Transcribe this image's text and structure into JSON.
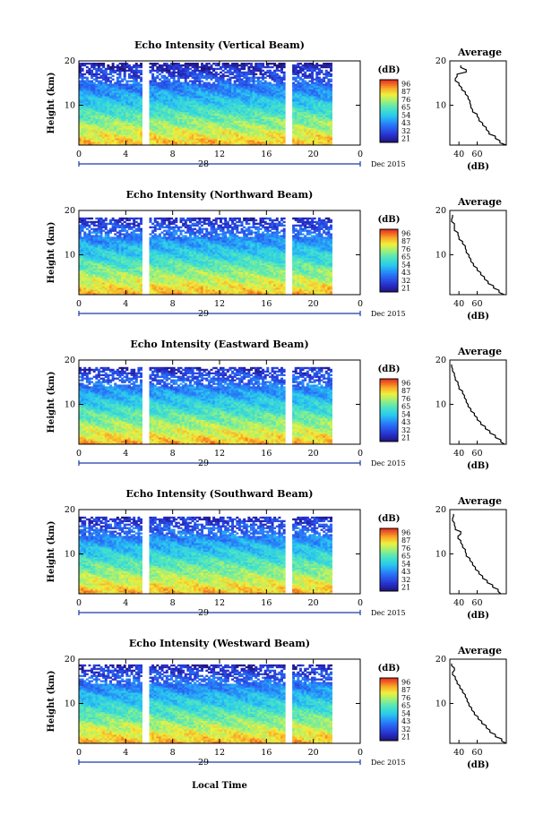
{
  "figure": {
    "date_label": "Dec 2015",
    "xlabel": "Local Time",
    "ylabel": "Height (km)",
    "average_title": "Average",
    "average_xlabel": "(dB)",
    "colorbar_unit": "(dB)",
    "colorbar_ticks": [
      "96",
      "87",
      "76",
      "65",
      "54",
      "43",
      "32",
      "21"
    ]
  },
  "chart_data": [
    {
      "type": "heatmap",
      "title": "Echo Intensity (Vertical Beam)",
      "xlabel": "",
      "ylabel": "Height (km)",
      "x_ticks": [
        "0",
        "4",
        "8",
        "12",
        "16",
        "20",
        "0"
      ],
      "y_ticks": [
        "10",
        "20"
      ],
      "day_label": "28",
      "xlim": [
        0,
        24
      ],
      "ylim": [
        1,
        20
      ],
      "gaps": [
        [
          5.4,
          5.9
        ],
        [
          17.6,
          18.1
        ],
        [
          21.6,
          22.3
        ]
      ],
      "top_km": 19.5,
      "profile_height_km": [
        1,
        2,
        3,
        4,
        5,
        6,
        7,
        8,
        9,
        10,
        11,
        12,
        13,
        14,
        15,
        16,
        17,
        18,
        19
      ],
      "profile_db": [
        92,
        85,
        80,
        73,
        70,
        66,
        62,
        60,
        55,
        53,
        52,
        50,
        47,
        43,
        40,
        36,
        38,
        48,
        42
      ],
      "profile_xticks": [
        "40",
        "60"
      ],
      "profile_xlim": [
        30,
        92
      ],
      "profile_yticks": [
        "10",
        "20"
      ]
    },
    {
      "type": "heatmap",
      "title": "Echo Intensity (Northward Beam)",
      "xlabel": "",
      "ylabel": "Height (km)",
      "x_ticks": [
        "0",
        "4",
        "8",
        "12",
        "16",
        "20",
        "0"
      ],
      "y_ticks": [
        "10",
        "20"
      ],
      "day_label": "29",
      "xlim": [
        0,
        24
      ],
      "ylim": [
        1,
        20
      ],
      "gaps": [
        [
          5.4,
          5.9
        ],
        [
          17.6,
          18.1
        ],
        [
          21.6,
          22.3
        ]
      ],
      "top_km": 18.5,
      "profile_height_km": [
        1,
        2,
        3,
        4,
        5,
        6,
        7,
        8,
        9,
        10,
        11,
        12,
        13,
        14,
        15,
        16,
        17,
        18,
        19
      ],
      "profile_db": [
        90,
        84,
        78,
        72,
        68,
        64,
        60,
        56,
        53,
        51,
        48,
        47,
        44,
        40,
        39,
        35,
        35,
        32,
        33
      ],
      "profile_xticks": [
        "40",
        "60"
      ],
      "profile_xlim": [
        30,
        92
      ],
      "profile_yticks": [
        "10",
        "20"
      ]
    },
    {
      "type": "heatmap",
      "title": "Echo Intensity (Eastward Beam)",
      "xlabel": "",
      "ylabel": "Height (km)",
      "x_ticks": [
        "0",
        "4",
        "8",
        "12",
        "16",
        "20",
        "0"
      ],
      "y_ticks": [
        "10",
        "20"
      ],
      "day_label": "29",
      "xlim": [
        0,
        24
      ],
      "ylim": [
        1,
        20
      ],
      "gaps": [
        [
          5.4,
          5.9
        ],
        [
          17.6,
          18.1
        ],
        [
          21.6,
          22.3
        ]
      ],
      "top_km": 18.5,
      "profile_height_km": [
        1,
        2,
        3,
        4,
        5,
        6,
        7,
        8,
        9,
        10,
        11,
        12,
        13,
        14,
        15,
        16,
        17,
        18,
        19
      ],
      "profile_db": [
        90,
        86,
        80,
        74,
        69,
        64,
        60,
        57,
        53,
        50,
        48,
        46,
        44,
        40,
        39,
        36,
        35,
        33,
        32
      ],
      "profile_xticks": [
        "40",
        "60"
      ],
      "profile_xlim": [
        30,
        92
      ],
      "profile_yticks": [
        "10",
        "20"
      ]
    },
    {
      "type": "heatmap",
      "title": "Echo Intensity (Southward Beam)",
      "xlabel": "",
      "ylabel": "Height (km)",
      "x_ticks": [
        "0",
        "4",
        "8",
        "12",
        "16",
        "20",
        "0"
      ],
      "y_ticks": [
        "10",
        "20"
      ],
      "day_label": "29",
      "xlim": [
        0,
        24
      ],
      "ylim": [
        1,
        20
      ],
      "gaps": [
        [
          5.4,
          5.9
        ],
        [
          17.6,
          18.1
        ],
        [
          21.6,
          22.3
        ]
      ],
      "top_km": 18.5,
      "profile_height_km": [
        1,
        2,
        3,
        4,
        5,
        6,
        7,
        8,
        9,
        10,
        11,
        12,
        13,
        14,
        15,
        16,
        17,
        18,
        19
      ],
      "profile_db": [
        86,
        83,
        77,
        71,
        66,
        62,
        58,
        55,
        52,
        48,
        47,
        44,
        42,
        39,
        42,
        36,
        35,
        33,
        34
      ],
      "profile_xticks": [
        "40",
        "60"
      ],
      "profile_xlim": [
        30,
        92
      ],
      "profile_yticks": [
        "10",
        "20"
      ]
    },
    {
      "type": "heatmap",
      "title": "Echo Intensity (Westward Beam)",
      "xlabel": "",
      "ylabel": "Height (km)",
      "x_ticks": [
        "0",
        "4",
        "8",
        "12",
        "16",
        "20",
        "0"
      ],
      "y_ticks": [
        "10",
        "20"
      ],
      "day_label": "29",
      "xlim": [
        0,
        24
      ],
      "ylim": [
        1,
        20
      ],
      "gaps": [
        [
          5.4,
          5.9
        ],
        [
          17.6,
          18.1
        ],
        [
          21.6,
          22.3
        ]
      ],
      "top_km": 18.8,
      "profile_height_km": [
        1,
        2,
        3,
        4,
        5,
        6,
        7,
        8,
        9,
        10,
        11,
        12,
        13,
        14,
        15,
        16,
        17,
        18,
        19
      ],
      "profile_db": [
        92,
        87,
        80,
        74,
        70,
        65,
        61,
        57,
        54,
        51,
        49,
        47,
        44,
        41,
        38,
        36,
        33,
        35,
        32
      ],
      "profile_xticks": [
        "40",
        "60"
      ],
      "profile_xlim": [
        30,
        92
      ],
      "profile_yticks": [
        "10",
        "20"
      ]
    }
  ]
}
